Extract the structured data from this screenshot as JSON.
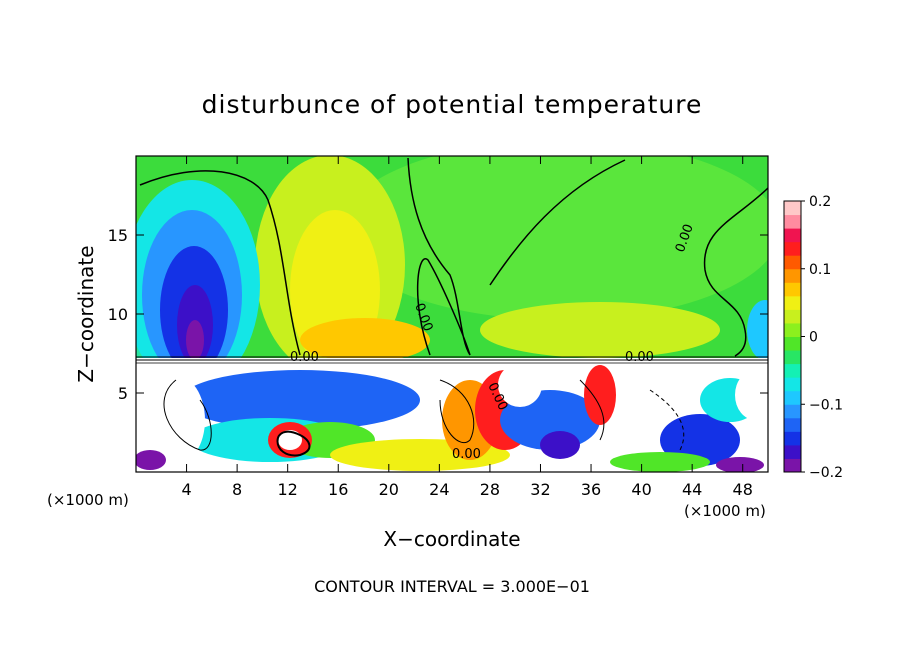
{
  "chart_data": {
    "type": "heatmap",
    "title": "disturbunce of potential temperature",
    "xlabel": "X−coordinate",
    "ylabel": "Z−coordinate",
    "x_unit_label": "(×1000 m)",
    "y_unit_label": "(×1000 m)",
    "footer": "CONTOUR INTERVAL = 3.000E−01",
    "xlim": [
      0,
      50
    ],
    "ylim": [
      0,
      20
    ],
    "x_ticks": [
      4,
      8,
      12,
      16,
      20,
      24,
      28,
      32,
      36,
      40,
      44,
      48
    ],
    "y_ticks": [
      5,
      10,
      15
    ],
    "colorbar": {
      "range": [
        -0.2,
        0.2
      ],
      "ticks": [
        0.2,
        0.1,
        0,
        -0.1,
        -0.2
      ],
      "tick_labels": [
        "0.2",
        "0.1",
        "0",
        "−0.1",
        "−0.2"
      ],
      "colors": [
        "#7a14a8",
        "#3c10c8",
        "#1432e6",
        "#1e64f5",
        "#2896ff",
        "#1ec8ff",
        "#14e6e6",
        "#14f0b4",
        "#28e664",
        "#50e628",
        "#8cf01e",
        "#c8f01e",
        "#f0f014",
        "#ffc800",
        "#ff9600",
        "#ff5a00",
        "#ff1e1e",
        "#f01450",
        "#ff8ca0",
        "#ffc8c8"
      ]
    },
    "contour_labels": [
      "0.00",
      "0.00",
      "0.00",
      "0.00",
      "0.00",
      "0.00"
    ]
  }
}
